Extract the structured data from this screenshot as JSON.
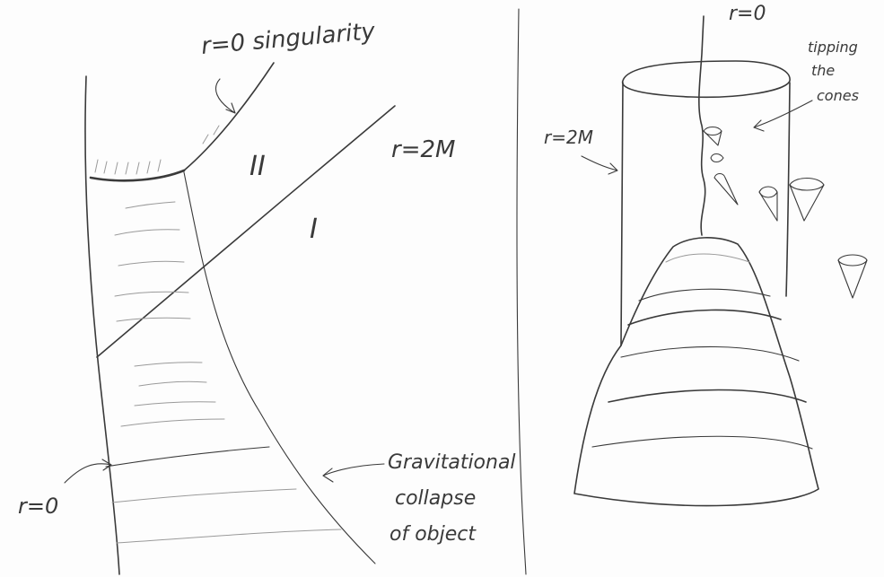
{
  "left_diagram": {
    "singularity_label": "r=0 singularity",
    "horizon_label": "r=2M",
    "region_ii": "II",
    "region_i": "I",
    "axis_label": "r=0",
    "collapse_label_line1": "Gravitational",
    "collapse_label_line2": "collapse",
    "collapse_label_line3": "of object"
  },
  "right_diagram": {
    "axis_label": "r=0",
    "horizon_label": "r=2M",
    "cones_label_line1": "tipping",
    "cones_label_line2": "the",
    "cones_label_line3": "cones"
  },
  "ink_color": "#3a3a3a"
}
